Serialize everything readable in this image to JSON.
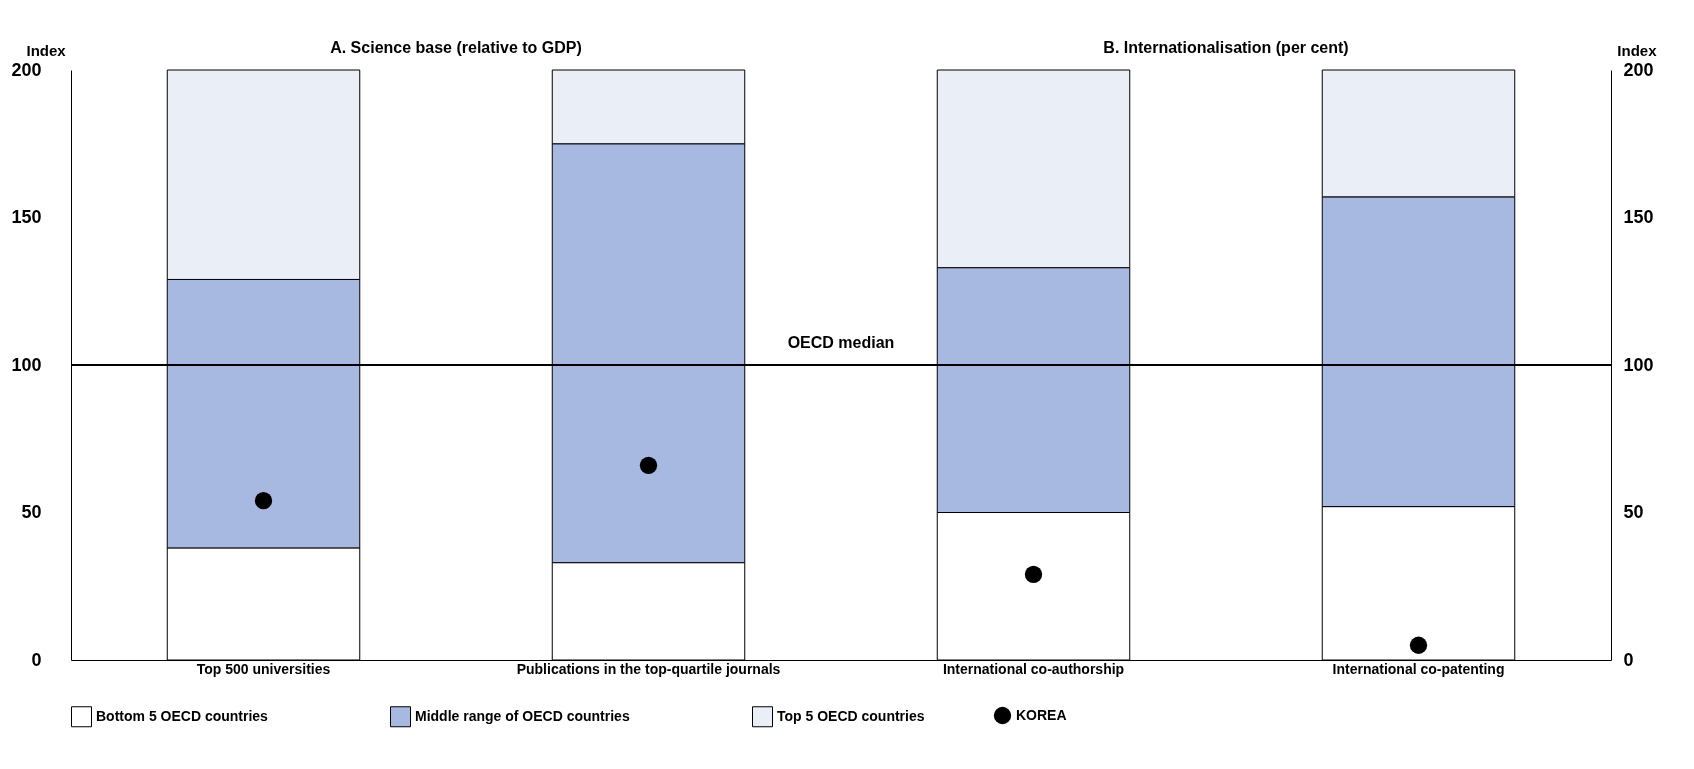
{
  "chart_data": {
    "type": "bar",
    "stacked": true,
    "annotations": [
      "A. Science base (relative to GDP)",
      "B. Internationalisation (per cent)"
    ],
    "ylabel": "Index",
    "y2label": "Index",
    "categories": [
      "Top 500 universities",
      "Publications in the top-quartile journals",
      "International co-authorship",
      "International co-patenting"
    ],
    "series": [
      {
        "name": "Bottom 5 OECD countries",
        "color": "#ffffff",
        "values": [
          38,
          33,
          50,
          52
        ]
      },
      {
        "name": "Middle range of OECD countries",
        "color": "#a7b8e1",
        "values": [
          91,
          142,
          83,
          105
        ]
      },
      {
        "name": "Top 5 OECD countries",
        "color": "#eaeef7",
        "values": [
          71,
          25,
          67,
          43
        ]
      },
      {
        "name": "KOREA",
        "type": "scatter",
        "color": "#000000",
        "x": [
          "Top 500 universities",
          "Publications in the top-quartile journals",
          "International co-authorship",
          "International co-patenting"
        ],
        "values": [
          54,
          66,
          29,
          5
        ]
      }
    ],
    "ylim": [
      0,
      200
    ],
    "yticks": [
      0,
      50,
      100,
      150,
      200
    ],
    "y2lim": [
      0,
      200
    ],
    "y2ticks": [
      0,
      50,
      100,
      150,
      200
    ],
    "ref_lines": [
      {
        "axis": "y",
        "value": 100,
        "label": "OECD median",
        "color": "#000000"
      }
    ],
    "grid": false,
    "legend": "bottom",
    "marker": "circle"
  }
}
